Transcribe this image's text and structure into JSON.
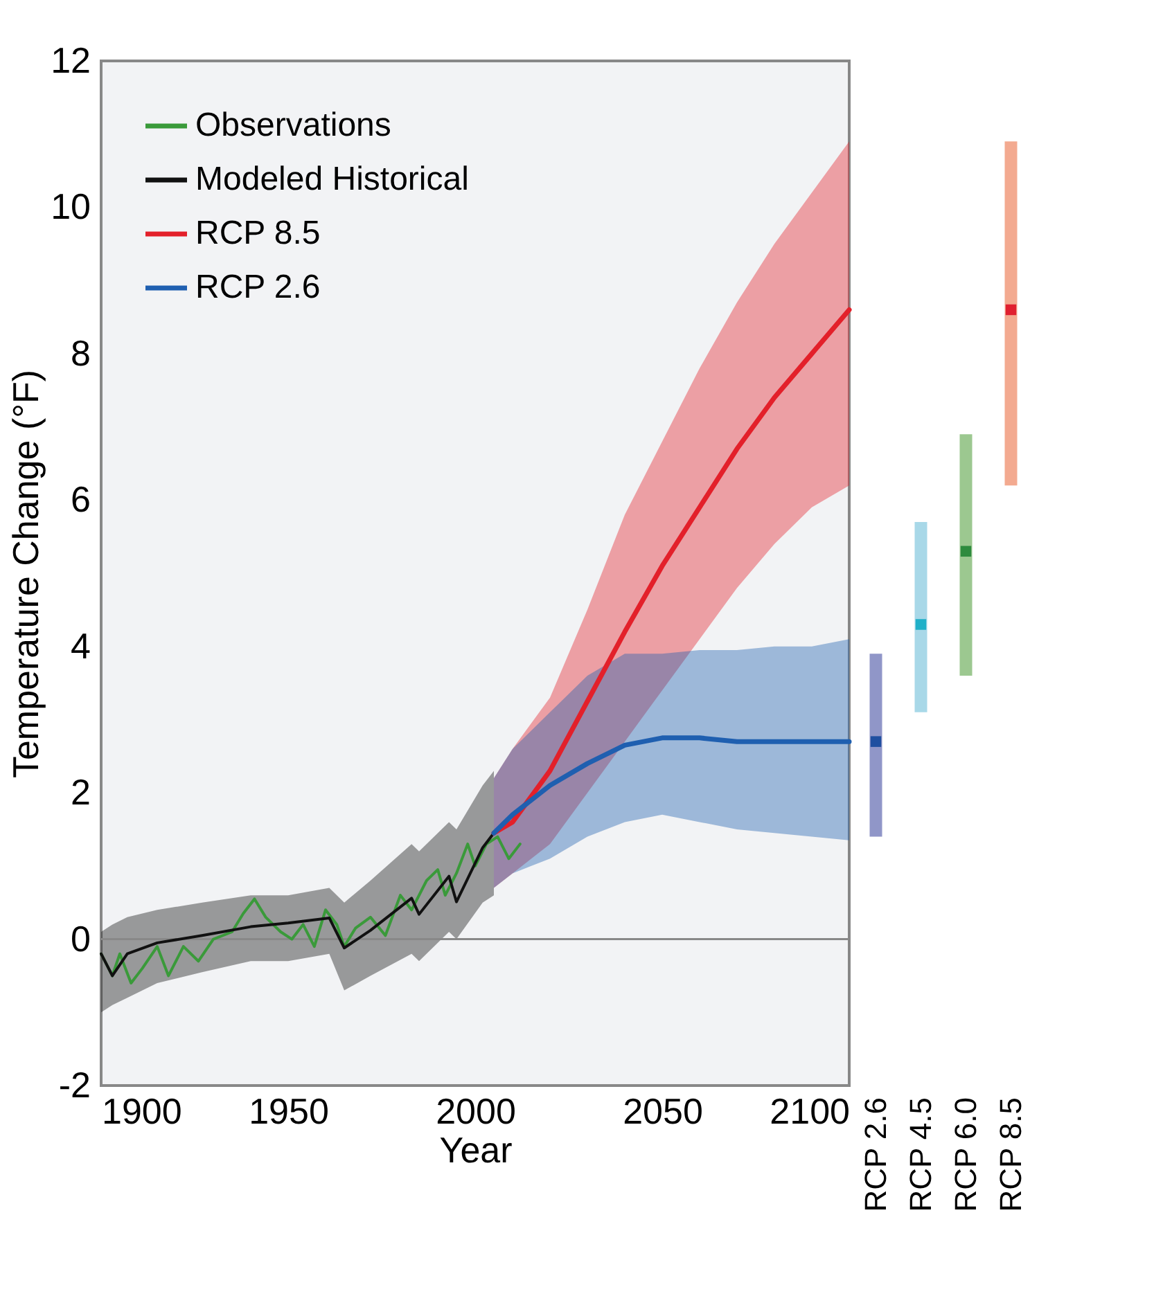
{
  "chart_data": [
    {
      "type": "line",
      "xlabel": "Year",
      "ylabel": "Temperature Change (°F)",
      "xlim": [
        1900,
        2100
      ],
      "ylim": [
        -2,
        12
      ],
      "xticks": [
        1900,
        1950,
        2000,
        2050,
        2100
      ],
      "yticks": [
        -2,
        0,
        2,
        4,
        6,
        8,
        10,
        12
      ],
      "grid": false,
      "legend": "top left",
      "ref_lines": [
        {
          "axis": "y",
          "value": 0,
          "color": "#888888"
        }
      ],
      "series": [
        {
          "name": "Observations",
          "color": "#3a9a3a",
          "x": [
            1900,
            1903,
            1905,
            1908,
            1911,
            1915,
            1918,
            1922,
            1926,
            1930,
            1935,
            1938,
            1941,
            1944,
            1948,
            1951,
            1954,
            1957,
            1960,
            1963,
            1965,
            1968,
            1972,
            1976,
            1980,
            1983,
            1987,
            1990,
            1992,
            1995,
            1998,
            2000,
            2003,
            2006,
            2009,
            2012
          ],
          "values": [
            -0.2,
            -0.5,
            -0.2,
            -0.6,
            -0.4,
            -0.1,
            -0.5,
            -0.1,
            -0.3,
            0.0,
            0.1,
            0.35,
            0.55,
            0.3,
            0.1,
            0.0,
            0.2,
            -0.1,
            0.4,
            0.2,
            -0.1,
            0.15,
            0.3,
            0.05,
            0.6,
            0.4,
            0.8,
            0.95,
            0.6,
            0.9,
            1.3,
            1.0,
            1.3,
            1.4,
            1.1,
            1.3
          ]
        },
        {
          "name": "Modeled Historical",
          "color": "#111111",
          "x": [
            1900,
            1903,
            1907,
            1915,
            1927,
            1940,
            1950,
            1961,
            1965,
            1972,
            1983,
            1985,
            1993,
            1995,
            2002,
            2005
          ],
          "values": [
            -0.2,
            -0.5,
            -0.2,
            -0.05,
            0.05,
            0.17,
            0.22,
            0.29,
            -0.12,
            0.12,
            0.56,
            0.34,
            0.86,
            0.51,
            1.25,
            1.45
          ],
          "lower": [
            -1.0,
            -0.9,
            -0.8,
            -0.6,
            -0.45,
            -0.3,
            -0.3,
            -0.2,
            -0.7,
            -0.5,
            -0.2,
            -0.3,
            0.1,
            0.0,
            0.5,
            0.6
          ],
          "upper": [
            0.1,
            0.2,
            0.3,
            0.4,
            0.5,
            0.6,
            0.6,
            0.7,
            0.5,
            0.8,
            1.3,
            1.2,
            1.6,
            1.5,
            2.1,
            2.3
          ]
        },
        {
          "name": "RCP 8.5",
          "color": "#e3202a",
          "x": [
            2005,
            2010,
            2020,
            2030,
            2040,
            2050,
            2060,
            2070,
            2080,
            2090,
            2100
          ],
          "values": [
            1.45,
            1.6,
            2.3,
            3.25,
            4.2,
            5.1,
            5.9,
            6.7,
            7.4,
            8.0,
            8.6
          ],
          "lower": [
            0.7,
            0.9,
            1.3,
            2.0,
            2.7,
            3.4,
            4.1,
            4.8,
            5.4,
            5.9,
            6.2
          ],
          "upper": [
            2.2,
            2.6,
            3.3,
            4.5,
            5.8,
            6.8,
            7.8,
            8.7,
            9.5,
            10.2,
            10.9
          ]
        },
        {
          "name": "RCP 2.6",
          "color": "#1f5fb0",
          "x": [
            2005,
            2010,
            2020,
            2030,
            2040,
            2050,
            2060,
            2070,
            2080,
            2090,
            2100
          ],
          "values": [
            1.45,
            1.7,
            2.1,
            2.4,
            2.65,
            2.75,
            2.75,
            2.7,
            2.7,
            2.7,
            2.7
          ],
          "lower": [
            0.7,
            0.9,
            1.1,
            1.4,
            1.6,
            1.7,
            1.6,
            1.5,
            1.45,
            1.4,
            1.35
          ],
          "upper": [
            2.2,
            2.6,
            3.1,
            3.6,
            3.9,
            3.9,
            3.95,
            3.95,
            4.0,
            4.0,
            4.1
          ]
        }
      ]
    },
    {
      "type": "bar",
      "categories": [
        "RCP 2.6",
        "RCP 4.5",
        "RCP 6.0",
        "RCP 8.5"
      ],
      "ylim": [
        -2,
        12
      ],
      "yticks": [
        -2,
        0,
        2,
        4,
        6,
        8,
        10,
        12
      ],
      "tick_labels": "x",
      "marker": "square",
      "series": [
        {
          "type": "bar",
          "base": [
            1.4,
            3.1,
            3.6,
            6.2
          ],
          "values": [
            2.5,
            2.6,
            3.3,
            4.7
          ],
          "colors": [
            "#9096c8",
            "#a8d8e8",
            "#9cc890",
            "#f3aa90"
          ]
        },
        {
          "type": "scatter",
          "values": [
            2.7,
            4.3,
            5.3,
            8.6
          ],
          "colors": [
            "#1f4fa0",
            "#20b0c8",
            "#2e8b3e",
            "#e02030"
          ]
        }
      ]
    }
  ]
}
